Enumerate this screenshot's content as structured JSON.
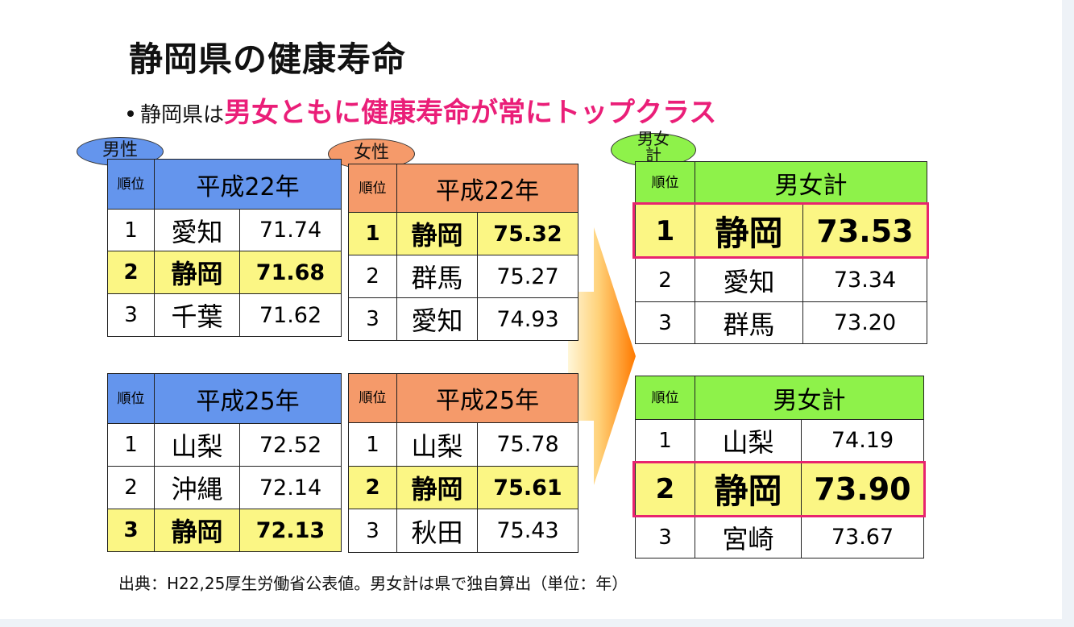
{
  "title": "静岡県の健康寿命",
  "bullet": {
    "prefix": "静岡県は",
    "highlight": "男女ともに健康寿命が常にトップクラス"
  },
  "labels": {
    "male": "男性",
    "female": "女性",
    "total_line1": "男女",
    "total_line2": "計"
  },
  "tables": {
    "male_h22": {
      "rank_header": "順位",
      "year": "平成22年",
      "rows": [
        {
          "rank": "1",
          "pref": "愛知",
          "value": "71.74"
        },
        {
          "rank": "2",
          "pref": "静岡",
          "value": "71.68"
        },
        {
          "rank": "3",
          "pref": "千葉",
          "value": "71.62"
        }
      ]
    },
    "female_h22": {
      "rank_header": "順位",
      "year": "平成22年",
      "rows": [
        {
          "rank": "1",
          "pref": "静岡",
          "value": "75.32"
        },
        {
          "rank": "2",
          "pref": "群馬",
          "value": "75.27"
        },
        {
          "rank": "3",
          "pref": "愛知",
          "value": "74.93"
        }
      ]
    },
    "male_h25": {
      "rank_header": "順位",
      "year": "平成25年",
      "rows": [
        {
          "rank": "1",
          "pref": "山梨",
          "value": "72.52"
        },
        {
          "rank": "2",
          "pref": "沖縄",
          "value": "72.14"
        },
        {
          "rank": "3",
          "pref": "静岡",
          "value": "72.13"
        }
      ]
    },
    "female_h25": {
      "rank_header": "順位",
      "year": "平成25年",
      "rows": [
        {
          "rank": "1",
          "pref": "山梨",
          "value": "75.78"
        },
        {
          "rank": "2",
          "pref": "静岡",
          "value": "75.61"
        },
        {
          "rank": "3",
          "pref": "秋田",
          "value": "75.43"
        }
      ]
    },
    "total_h22": {
      "rank_header": "順位",
      "year": "男女計",
      "rows": [
        {
          "rank": "1",
          "pref": "静岡",
          "value": "73.53"
        },
        {
          "rank": "2",
          "pref": "愛知",
          "value": "73.34"
        },
        {
          "rank": "3",
          "pref": "群馬",
          "value": "73.20"
        }
      ]
    },
    "total_h25": {
      "rank_header": "順位",
      "year": "男女計",
      "rows": [
        {
          "rank": "1",
          "pref": "山梨",
          "value": "74.19"
        },
        {
          "rank": "2",
          "pref": "静岡",
          "value": "73.90"
        },
        {
          "rank": "3",
          "pref": "宮崎",
          "value": "73.67"
        }
      ]
    }
  },
  "source": "出典：H22,25厚生労働省公表値。男女計は県で独自算出（単位：年）",
  "colors": {
    "male_header": "#6495ed",
    "female_header": "#f59a6a",
    "total_header": "#8ef24a",
    "highlight_row": "#fbf684",
    "highlight_border": "#e8246f",
    "highlight_text": "#ea1e78"
  }
}
